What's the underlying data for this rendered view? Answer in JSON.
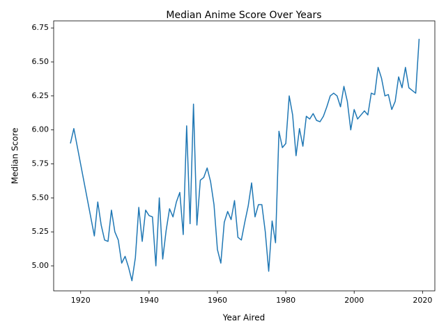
{
  "chart_data": {
    "type": "line",
    "title": "Median Anime Score Over Years",
    "x_label": "Year Aired",
    "y_label": "Median Score",
    "x": [
      1917,
      1918,
      1924,
      1925,
      1926,
      1927,
      1928,
      1929,
      1930,
      1931,
      1932,
      1933,
      1934,
      1935,
      1936,
      1937,
      1938,
      1939,
      1940,
      1941,
      1942,
      1943,
      1944,
      1945,
      1946,
      1947,
      1948,
      1949,
      1950,
      1951,
      1952,
      1953,
      1954,
      1955,
      1956,
      1957,
      1958,
      1959,
      1960,
      1961,
      1962,
      1963,
      1964,
      1965,
      1966,
      1967,
      1968,
      1969,
      1970,
      1971,
      1972,
      1973,
      1974,
      1975,
      1976,
      1977,
      1978,
      1979,
      1980,
      1981,
      1982,
      1983,
      1984,
      1985,
      1986,
      1987,
      1988,
      1989,
      1990,
      1991,
      1992,
      1993,
      1994,
      1995,
      1996,
      1997,
      1998,
      1999,
      2000,
      2001,
      2002,
      2003,
      2004,
      2005,
      2006,
      2007,
      2008,
      2009,
      2010,
      2011,
      2012,
      2013,
      2014,
      2015,
      2016,
      2017,
      2018,
      2019
    ],
    "series": [
      {
        "name": "Median Score",
        "color": "#1f77b4",
        "values": [
          5.9,
          6.01,
          5.22,
          5.47,
          5.3,
          5.19,
          5.18,
          5.41,
          5.25,
          5.19,
          5.02,
          5.07,
          4.99,
          4.89,
          5.06,
          5.43,
          5.18,
          5.41,
          5.37,
          5.36,
          5.0,
          5.5,
          5.05,
          5.26,
          5.42,
          5.36,
          5.47,
          5.54,
          5.23,
          6.03,
          5.31,
          6.19,
          5.3,
          5.63,
          5.65,
          5.72,
          5.62,
          5.45,
          5.12,
          5.02,
          5.32,
          5.4,
          5.34,
          5.48,
          5.21,
          5.19,
          5.32,
          5.44,
          5.61,
          5.36,
          5.45,
          5.45,
          5.25,
          4.96,
          5.33,
          5.17,
          5.99,
          5.87,
          5.9,
          6.25,
          6.11,
          5.81,
          6.01,
          5.88,
          6.1,
          6.08,
          6.12,
          6.07,
          6.06,
          6.1,
          6.17,
          6.25,
          6.27,
          6.25,
          6.17,
          6.32,
          6.21,
          6.0,
          6.15,
          6.08,
          6.11,
          6.14,
          6.11,
          6.27,
          6.26,
          6.46,
          6.38,
          6.25,
          6.26,
          6.15,
          6.21,
          6.39,
          6.31,
          6.46,
          6.31,
          6.29,
          6.27,
          6.67
        ]
      }
    ],
    "xlim": [
      1912.1,
      2023.6
    ],
    "xticks": [
      1920,
      1940,
      1960,
      1980,
      2000,
      2020
    ],
    "ylim": [
      4.816,
      6.802
    ],
    "yticks": [
      {
        "value": 5.0,
        "label": "5.00"
      },
      5.25,
      {
        "value": 5.5,
        "label": "5.50"
      },
      5.75,
      {
        "value": 6.0,
        "label": "6.00"
      },
      6.25,
      {
        "value": 6.5,
        "label": "6.50"
      },
      6.75
    ],
    "grid": false
  }
}
